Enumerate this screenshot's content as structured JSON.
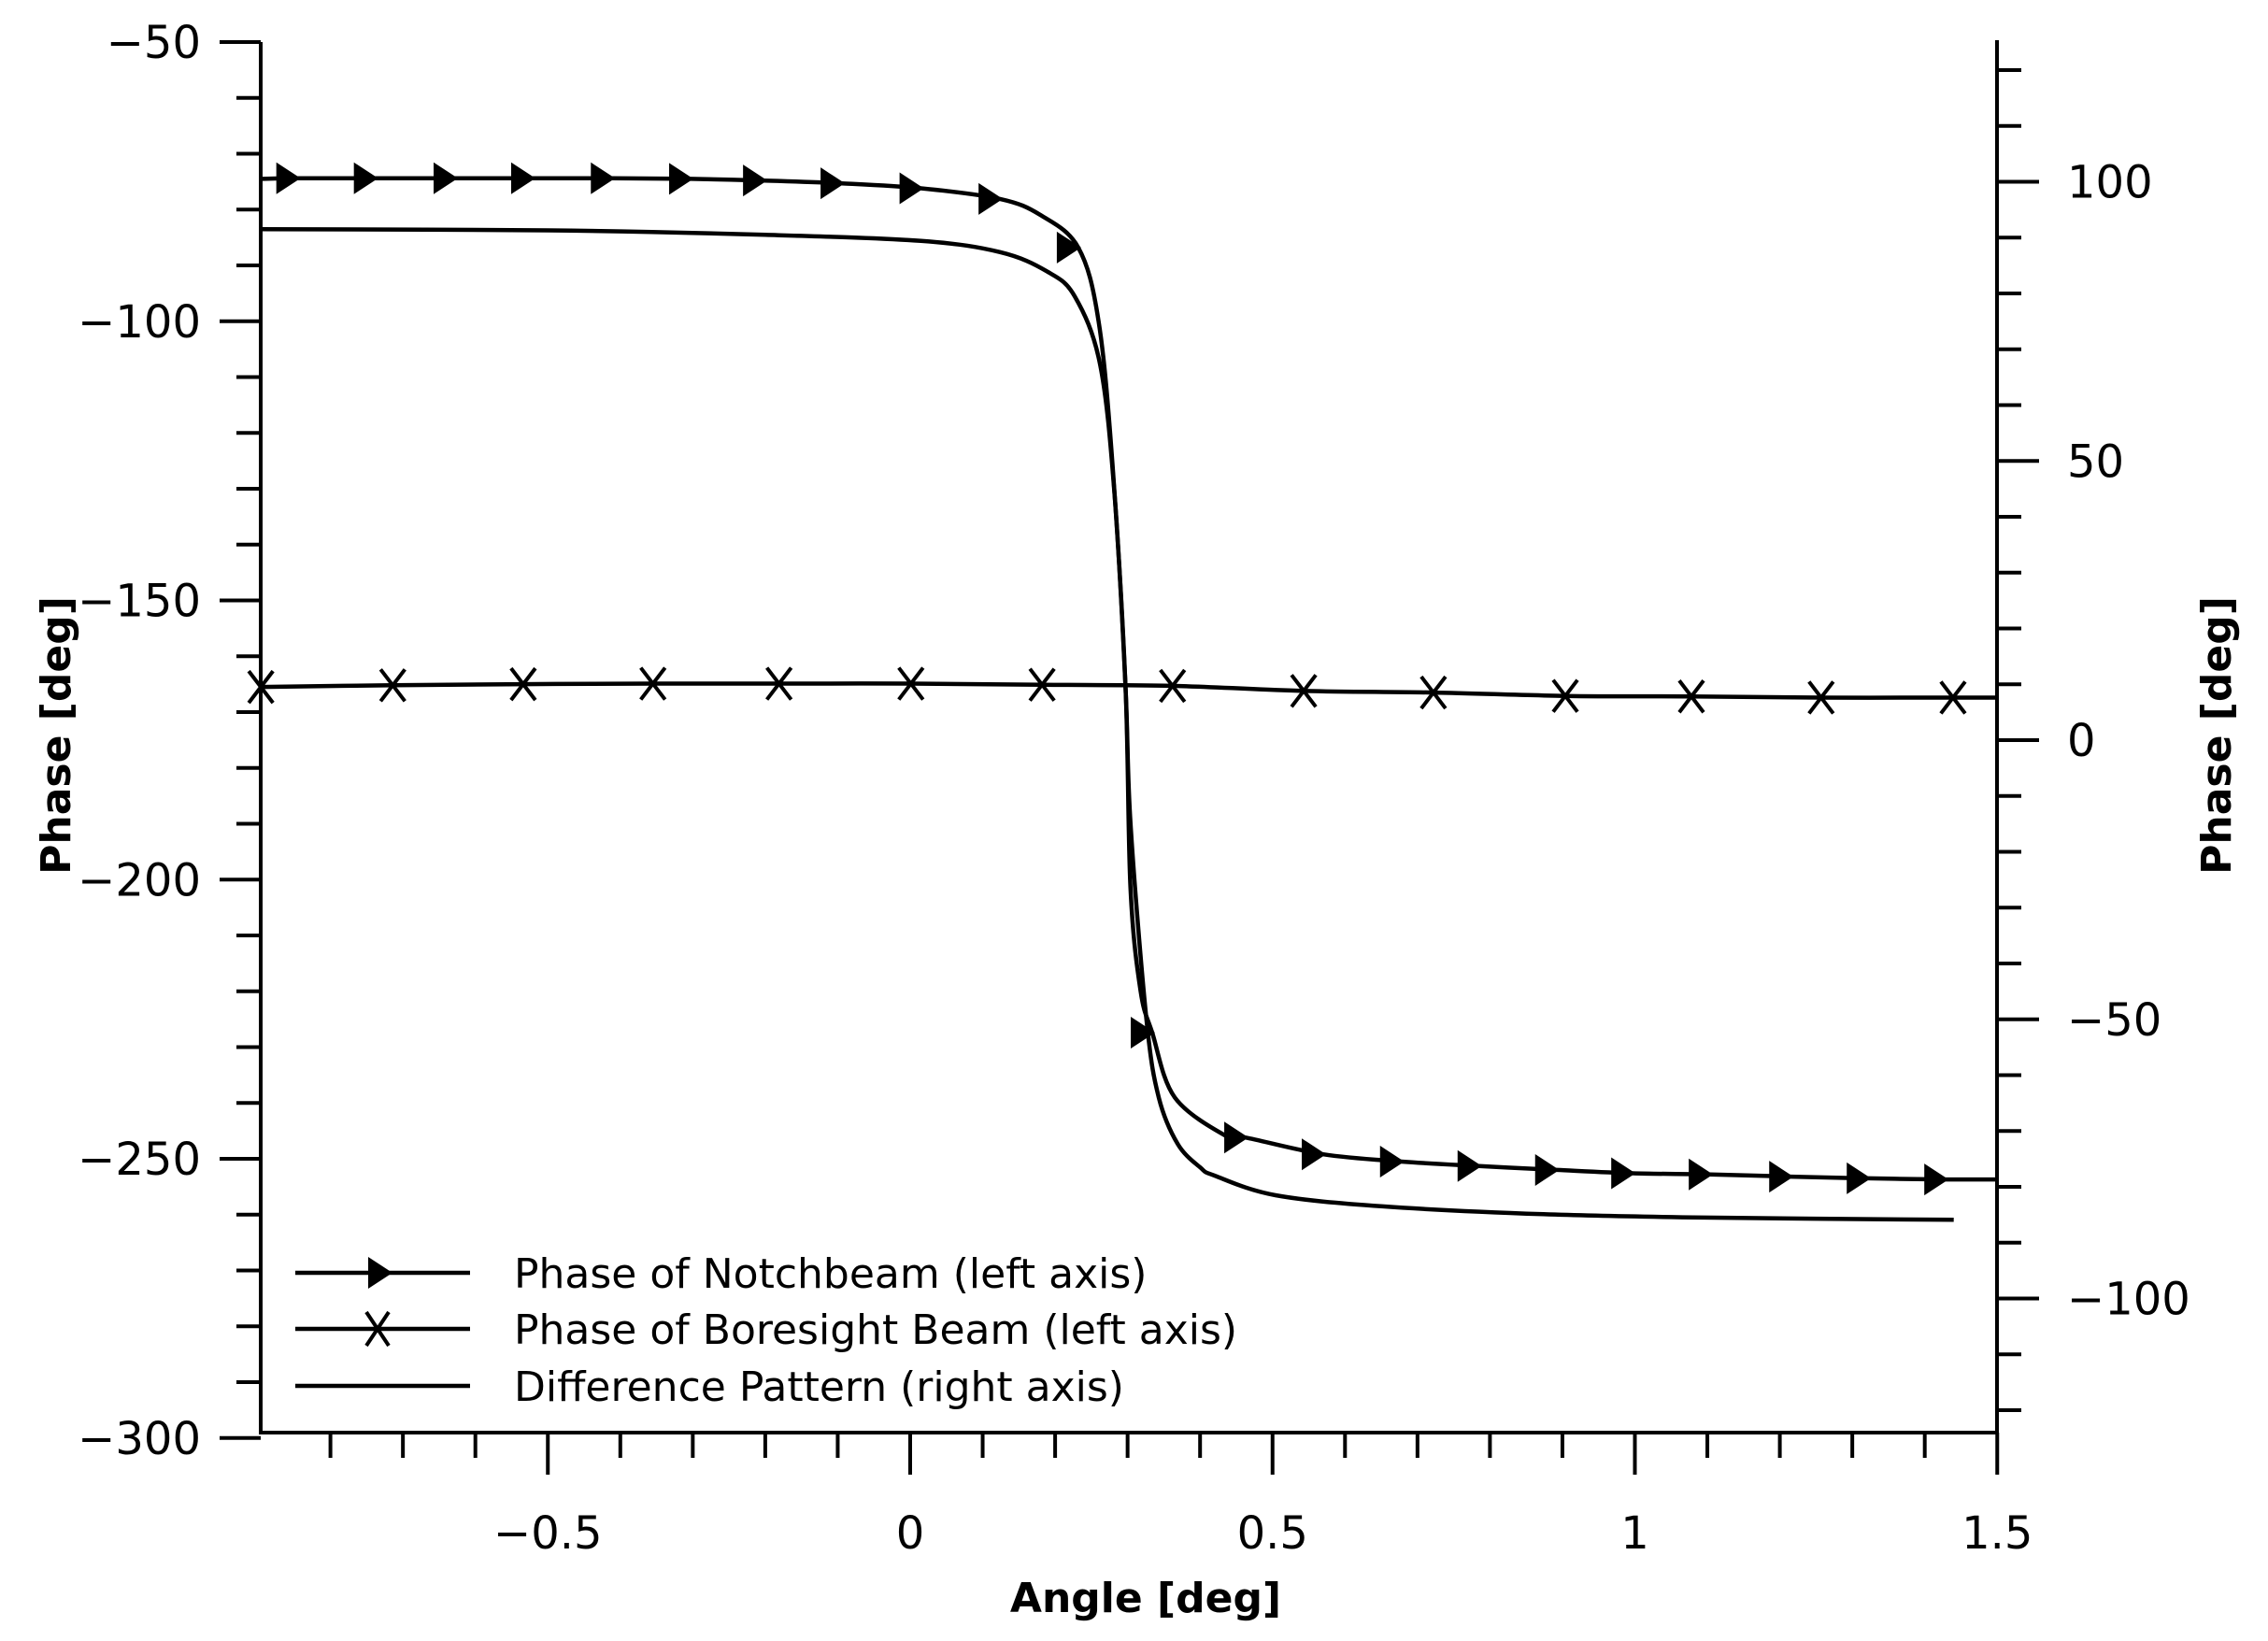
{
  "chart_data": {
    "type": "line",
    "title": "",
    "xlabel": "Angle [deg]",
    "ylabel": "Phase [deg]",
    "ylabel_right": "Phase [deg]",
    "xlim": [
      -0.9,
      1.5
    ],
    "ylim": [
      -300,
      -50
    ],
    "ylim_right": [
      -125,
      125
    ],
    "grid": false,
    "legend_position": "lower left",
    "x_ticks": [
      -0.5,
      0,
      0.5,
      1,
      1.5
    ],
    "x_tick_labels": [
      "−0.5",
      "0",
      "0.5",
      "1",
      "1.5"
    ],
    "x_minor_step": 0.1,
    "y_ticks": [
      -50,
      -100,
      -150,
      -200,
      -250,
      -300
    ],
    "y_tick_labels": [
      "−50",
      "−100",
      "−150",
      "−200",
      "−250",
      "−300"
    ],
    "y_minor_step": 10,
    "y_right_ticks": [
      100,
      50,
      0,
      -50,
      -100
    ],
    "y_right_tick_labels": [
      "100",
      "50",
      "0",
      "−50",
      "−100"
    ],
    "y_right_minor_step": 10,
    "series": [
      {
        "name": "Phase of Notchbeam (left axis)",
        "axis": "left",
        "marker": "triangle-right",
        "x": [
          -0.896,
          -0.845,
          -0.738,
          -0.628,
          -0.521,
          -0.411,
          -0.303,
          -0.201,
          -0.094,
          0.015,
          0.124,
          0.18,
          0.232,
          0.26,
          0.279,
          0.297,
          0.304,
          0.318,
          0.334,
          0.365,
          0.437,
          0.463,
          0.57,
          0.678,
          0.785,
          0.892,
          0.997,
          1.104,
          1.215,
          1.322,
          1.429,
          1.5
        ],
        "values": [
          -74.5,
          -74.4,
          -74.4,
          -74.4,
          -74.4,
          -74.4,
          -74.5,
          -74.8,
          -75.3,
          -76.2,
          -78.1,
          -81.0,
          -86.8,
          -100.0,
          -125.4,
          -165.0,
          -201.7,
          -220.0,
          -227.4,
          -239.0,
          -246.0,
          -246.2,
          -249.2,
          -250.5,
          -251.3,
          -252.0,
          -252.6,
          -252.8,
          -253.2,
          -253.5,
          -253.7,
          -253.7
        ],
        "marker_x": [
          -0.845,
          -0.738,
          -0.628,
          -0.521,
          -0.411,
          -0.303,
          -0.201,
          -0.094,
          0.015,
          0.124,
          0.232,
          0.334,
          0.463,
          0.57,
          0.678,
          0.785,
          0.892,
          0.997,
          1.104,
          1.215,
          1.322,
          1.429
        ]
      },
      {
        "name": "Phase of Boresight Beam (left axis)",
        "axis": "left",
        "marker": "x",
        "x": [
          -0.896,
          -0.714,
          -0.534,
          -0.355,
          -0.181,
          0.001,
          0.182,
          0.362,
          0.543,
          0.722,
          0.904,
          1.078,
          1.257,
          1.439,
          1.5
        ],
        "values": [
          -165.5,
          -165.2,
          -165.0,
          -164.9,
          -164.9,
          -164.9,
          -165.1,
          -165.3,
          -166.2,
          -166.5,
          -167.1,
          -167.2,
          -167.4,
          -167.4,
          -167.4
        ],
        "marker_x": [
          -0.896,
          -0.714,
          -0.534,
          -0.355,
          -0.181,
          0.001,
          0.182,
          0.362,
          0.543,
          0.722,
          0.904,
          1.078,
          1.257,
          1.439
        ]
      },
      {
        "name": "Difference Pattern (right axis)",
        "axis": "right",
        "marker": "none",
        "x": [
          -0.896,
          -0.5,
          -0.2,
          0.015,
          0.124,
          0.188,
          0.227,
          0.262,
          0.282,
          0.297,
          0.304,
          0.326,
          0.343,
          0.369,
          0.4,
          0.42,
          0.504,
          0.652,
          0.874,
          1.096,
          1.44
        ],
        "values": [
          91.5,
          91.3,
          90.5,
          89.4,
          87.4,
          84.0,
          79.5,
          67.3,
          44.0,
          10.0,
          -15.0,
          -50.0,
          -64.0,
          -72.3,
          -76.5,
          -78.0,
          -81.5,
          -83.5,
          -84.9,
          -85.5,
          -85.9
        ],
        "marker_x": []
      }
    ]
  },
  "legend": {
    "items": [
      {
        "label": "Phase of Notchbeam (left axis)",
        "marker": "triangle-right"
      },
      {
        "label": "Phase of Boresight Beam (left axis)",
        "marker": "x"
      },
      {
        "label": "Difference Pattern (right axis)",
        "marker": "none"
      }
    ]
  }
}
